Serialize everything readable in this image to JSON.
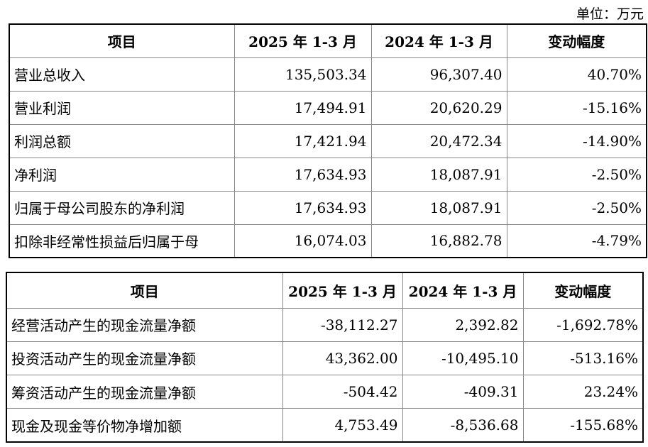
{
  "unit": "单位：万元",
  "tables": [
    {
      "header": [
        "项目",
        "2025 年 1-3 月",
        "2024 年 1-3 月",
        "变动幅度"
      ],
      "rows": [
        [
          "营业总收入",
          "135,503.34",
          "96,307.40",
          "40.70%"
        ],
        [
          "营业利润",
          "17,494.91",
          "20,620.29",
          "-15.16%"
        ],
        [
          "利润总额",
          "17,421.94",
          "20,472.34",
          "-14.90%"
        ],
        [
          "净利润",
          "17,634.93",
          "18,087.91",
          "-2.50%"
        ],
        [
          "归属于母公司股东的净利润",
          "17,634.93",
          "18,087.91",
          "-2.50%"
        ],
        [
          "扣除非经常性损益后归属于母",
          "16,074.03",
          "16,882.78",
          "-4.79%"
        ]
      ]
    },
    {
      "header": [
        "项目",
        "2025 年 1-3 月",
        "2024 年 1-3 月",
        "变动幅度"
      ],
      "rows": [
        [
          "经营活动产生的现金流量净额",
          "-38,112.27",
          "2,392.82",
          "-1,692.78%"
        ],
        [
          "投资活动产生的现金流量净额",
          "43,362.00",
          "-10,495.10",
          "-513.16%"
        ],
        [
          "筹资活动产生的现金流量净额",
          "-504.42",
          "-409.31",
          "23.24%"
        ],
        [
          "现金及现金等价物净增加额",
          "4,753.49",
          "-8,536.68",
          "-155.68%"
        ]
      ]
    }
  ]
}
